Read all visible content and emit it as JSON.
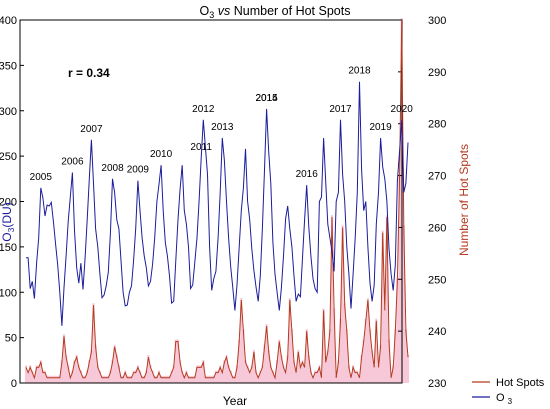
{
  "chart_data": {
    "type": "line",
    "title": "O3 vs Number of Hot Spots",
    "title_parts": {
      "o": "O",
      "sub": "3",
      "vs": "vs",
      "rest": "Number of Hot Spots"
    },
    "xlabel": "Year",
    "ylabel_left": "O3(DU)",
    "ylabel_left_parts": {
      "main": "O",
      "sub": "3",
      "unit": "(DU)"
    },
    "ylabel_right": "Number of Hot Spots",
    "annotation": "r = 0.34",
    "grid": false,
    "legend_placement": "bottom-right",
    "y_left": {
      "min": 0,
      "max": 400,
      "ticks": [
        0,
        50,
        100,
        150,
        200,
        250,
        300,
        350,
        400
      ]
    },
    "y_right": {
      "min": 230,
      "max": 300,
      "ticks": [
        230,
        240,
        250,
        260,
        270,
        280,
        290,
        300
      ]
    },
    "year_labels": [
      "2005",
      "2006",
      "2007",
      "2008",
      "2009",
      "2010",
      "2011",
      "2012",
      "2013",
      "2014",
      "2015",
      "2016",
      "2017",
      "2018",
      "2019",
      "2020"
    ],
    "colors": {
      "o3": "#1c1c9c",
      "hotspots": "#b53a1f",
      "highlight": "#f7c8d8"
    },
    "series": [
      {
        "name": "O3",
        "axis": "left",
        "label_parts": {
          "main": "O",
          "sub": "3"
        },
        "values": [
          138,
          138,
          104,
          112,
          93,
          132,
          160,
          215,
          204,
          184,
          196,
          195,
          199,
          178,
          154,
          130,
          100,
          63,
          105,
          140,
          178,
          205,
          232,
          168,
          127,
          110,
          132,
          103,
          138,
          180,
          225,
          268,
          220,
          170,
          150,
          120,
          94,
          97,
          107,
          122,
          165,
          225,
          210,
          180,
          170,
          135,
          100,
          85,
          86,
          100,
          107,
          135,
          170,
          223,
          190,
          160,
          140,
          127,
          107,
          112,
          131,
          160,
          200,
          219,
          240,
          190,
          155,
          140,
          118,
          88,
          90,
          135,
          180,
          214,
          240,
          190,
          175,
          150,
          104,
          108,
          133,
          160,
          201,
          248,
          290,
          260,
          230,
          150,
          102,
          115,
          123,
          160,
          210,
          270,
          245,
          200,
          160,
          128,
          105,
          80,
          108,
          150,
          190,
          215,
          258,
          200,
          180,
          148,
          124,
          106,
          90,
          118,
          171,
          235,
          302,
          255,
          220,
          155,
          120,
          100,
          80,
          105,
          140,
          181,
          195,
          170,
          150,
          118,
          90,
          98,
          95,
          138,
          180,
          218,
          172,
          140,
          115,
          104,
          100,
          200,
          205,
          270,
          222,
          175,
          160,
          145,
          123,
          200,
          210,
          290,
          230,
          200,
          150,
          120,
          82,
          120,
          160,
          210,
          332,
          235,
          190,
          200,
          150,
          110,
          90,
          108,
          175,
          210,
          270,
          238,
          225,
          200,
          148,
          120,
          102,
          130,
          223,
          256,
          290,
          210,
          220,
          265
        ]
      },
      {
        "name": "Hot Spots",
        "axis": "right",
        "values": [
          233,
          232,
          233,
          232,
          231,
          233,
          233,
          234,
          232,
          232,
          231,
          231,
          231,
          231,
          231,
          231,
          231,
          234,
          239,
          235,
          233,
          231,
          232,
          234,
          235,
          233,
          232,
          231,
          231,
          232,
          234,
          236,
          245,
          237,
          233,
          232,
          231,
          231,
          231,
          231,
          232,
          234,
          237,
          235,
          233,
          231,
          231,
          232,
          231,
          231,
          231,
          232,
          232,
          233,
          232,
          231,
          231,
          232,
          235,
          233,
          232,
          231,
          231,
          232,
          231,
          231,
          231,
          231,
          231,
          232,
          233,
          238,
          238,
          234,
          232,
          231,
          232,
          231,
          231,
          231,
          231,
          233,
          233,
          233,
          234,
          231,
          231,
          231,
          231,
          231,
          232,
          232,
          233,
          232,
          234,
          235,
          233,
          232,
          231,
          231,
          233,
          238,
          246,
          240,
          234,
          233,
          232,
          233,
          236,
          232,
          231,
          232,
          233,
          237,
          241,
          236,
          233,
          232,
          231,
          234,
          238,
          235,
          233,
          232,
          235,
          246,
          240,
          234,
          232,
          236,
          233,
          234,
          233,
          240,
          235,
          232,
          231,
          232,
          232,
          233,
          231,
          244,
          234,
          236,
          240,
          262,
          244,
          231,
          234,
          242,
          260,
          245,
          240,
          233,
          231,
          233,
          232,
          232,
          231,
          235,
          238,
          242,
          246,
          240,
          236,
          233,
          242,
          233,
          237,
          259,
          244,
          262,
          238,
          231,
          233,
          240,
          250,
          270,
          300,
          260,
          240,
          235
        ]
      }
    ]
  }
}
